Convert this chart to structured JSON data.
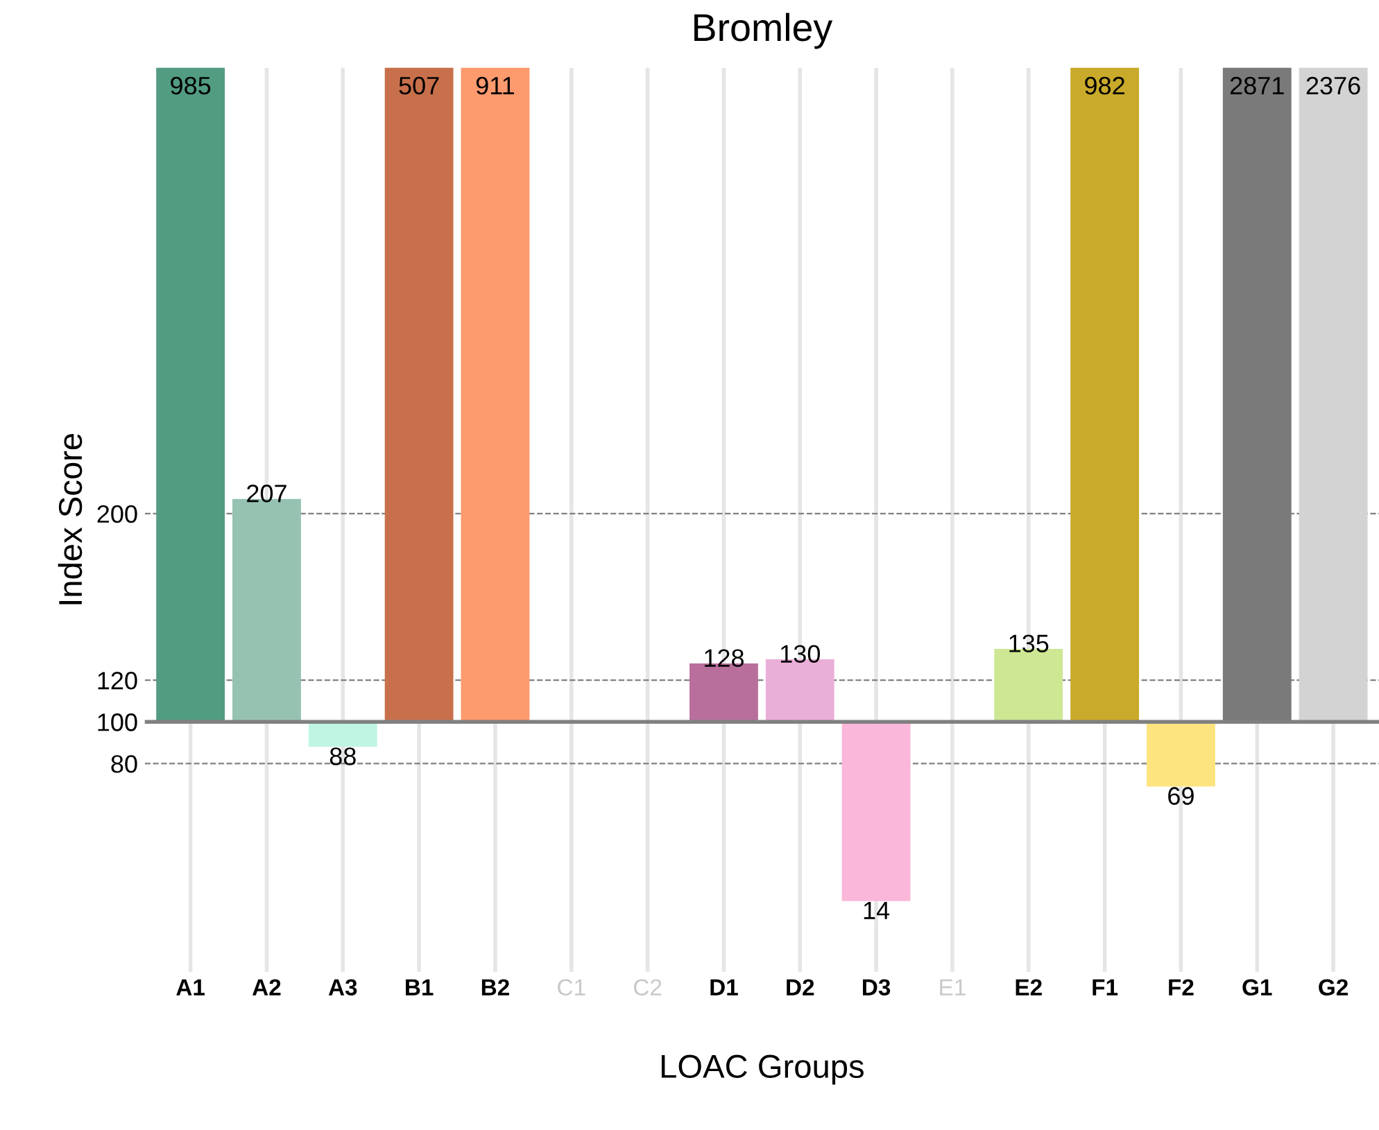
{
  "chart_data": {
    "type": "bar",
    "title": "Bromley",
    "xlabel": "LOAC Groups",
    "ylabel": "Index Score",
    "categories": [
      "A1",
      "A2",
      "A3",
      "B1",
      "B2",
      "C1",
      "C2",
      "D1",
      "D2",
      "D3",
      "E1",
      "E2",
      "F1",
      "F2",
      "G1",
      "G2"
    ],
    "base": [
      100,
      100,
      100,
      100,
      100,
      null,
      null,
      100,
      100,
      100,
      null,
      100,
      100,
      100,
      100,
      100
    ],
    "values": [
      885,
      107,
      -12,
      407,
      811,
      null,
      null,
      28,
      30,
      -86,
      null,
      35,
      882,
      -31,
      2771,
      2276
    ],
    "value_labels": [
      "985",
      "207",
      "88",
      "507",
      "911",
      null,
      null,
      "128",
      "130",
      "14",
      null,
      "135",
      "982",
      "69",
      "2871",
      "2376"
    ],
    "colors": [
      "#529c82",
      "#96c2b2",
      "#bff5e2",
      "#c8704c",
      "#fd9a6e",
      null,
      null,
      "#b86f9c",
      "#eaafd8",
      "#fbb7da",
      null,
      "#cde793",
      "#c9aa2a",
      "#fde47f",
      "#7a7a7a",
      "#d3d3d3"
    ],
    "ylim": [
      -20,
      414
    ],
    "yticks": [
      80,
      100,
      120,
      200
    ],
    "grid": "x",
    "ref_lines": [
      {
        "axis": "y",
        "value": 100,
        "color": "#808080",
        "line_style": "solid"
      },
      {
        "axis": "y",
        "value": 80,
        "color": "#808080",
        "line_style": "dashed"
      },
      {
        "axis": "y",
        "value": 120,
        "color": "#808080",
        "line_style": "dashed"
      },
      {
        "axis": "y",
        "value": 200,
        "color": "#808080",
        "line_style": "dashed"
      }
    ]
  }
}
